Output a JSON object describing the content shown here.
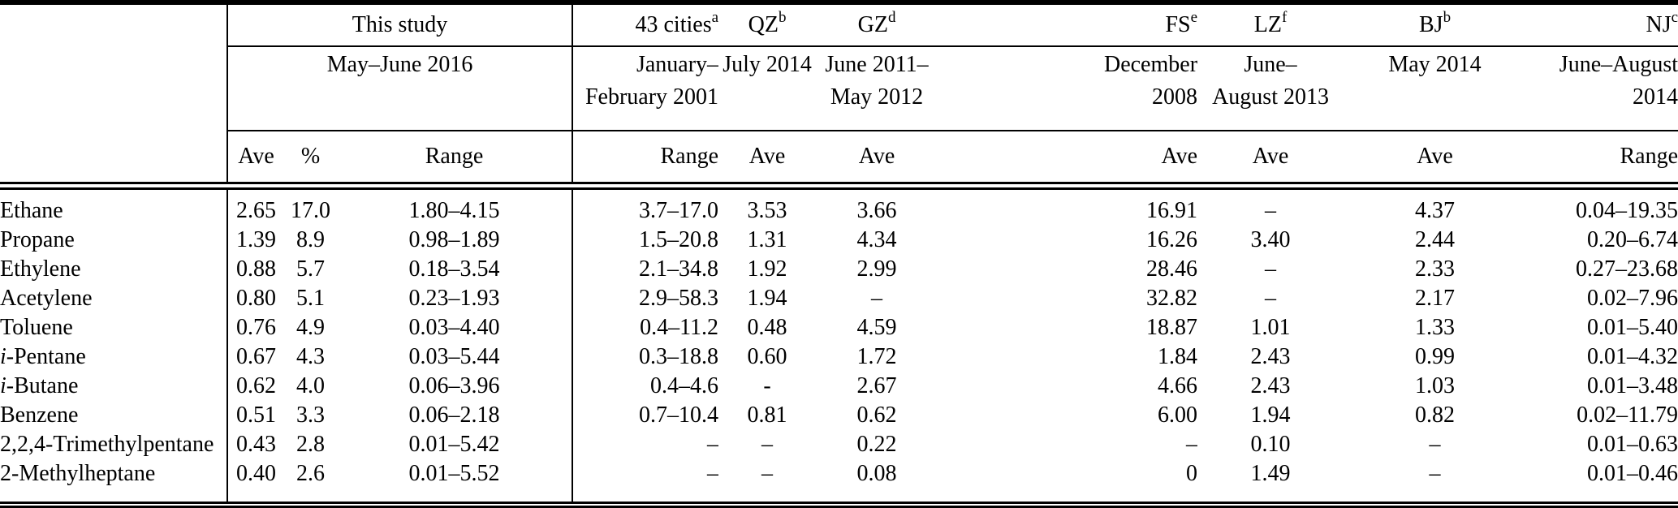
{
  "table": {
    "study": {
      "label": "This study",
      "date": "May–June 2016",
      "stats": [
        "Ave",
        "%",
        "Range"
      ]
    },
    "sites": [
      {
        "label": "43 cities",
        "sup": "a",
        "date": "January–\nFebruary 2001",
        "stat": "Range"
      },
      {
        "label": "QZ",
        "sup": "b",
        "date": "July 2014",
        "stat": "Ave"
      },
      {
        "label": "GZ",
        "sup": "d",
        "date": "June 2011–\nMay 2012",
        "stat": "Ave"
      },
      {
        "label": "FS",
        "sup": "e",
        "date": "December\n2008",
        "stat": "Ave"
      },
      {
        "label": "LZ",
        "sup": "f",
        "date": "June–\nAugust 2013",
        "stat": "Ave"
      },
      {
        "label": "BJ",
        "sup": "b",
        "date": "May 2014",
        "stat": "Ave"
      },
      {
        "label": "NJ",
        "sup": "c",
        "date": "June–August\n2014",
        "stat": "Range"
      }
    ],
    "rows": [
      {
        "name": "Ethane",
        "italic_first": false,
        "values": [
          "2.65",
          "17.0",
          "1.80–4.15",
          "3.7–17.0",
          "3.53",
          "3.66",
          "16.91",
          "–",
          "4.37",
          "0.04–19.35"
        ]
      },
      {
        "name": "Propane",
        "italic_first": false,
        "values": [
          "1.39",
          "8.9",
          "0.98–1.89",
          "1.5–20.8",
          "1.31",
          "4.34",
          "16.26",
          "3.40",
          "2.44",
          "0.20–6.74"
        ]
      },
      {
        "name": "Ethylene",
        "italic_first": false,
        "values": [
          "0.88",
          "5.7",
          "0.18–3.54",
          "2.1–34.8",
          "1.92",
          "2.99",
          "28.46",
          "–",
          "2.33",
          "0.27–23.68"
        ]
      },
      {
        "name": "Acetylene",
        "italic_first": false,
        "values": [
          "0.80",
          "5.1",
          "0.23–1.93",
          "2.9–58.3",
          "1.94",
          "–",
          "32.82",
          "–",
          "2.17",
          "0.02–7.96"
        ]
      },
      {
        "name": "Toluene",
        "italic_first": false,
        "values": [
          "0.76",
          "4.9",
          "0.03–4.40",
          "0.4–11.2",
          "0.48",
          "4.59",
          "18.87",
          "1.01",
          "1.33",
          "0.01–5.40"
        ]
      },
      {
        "name": "i-Pentane",
        "italic_first": true,
        "values": [
          "0.67",
          "4.3",
          "0.03–5.44",
          "0.3–18.8",
          "0.60",
          "1.72",
          "1.84",
          "2.43",
          "0.99",
          "0.01–4.32"
        ]
      },
      {
        "name": "i-Butane",
        "italic_first": true,
        "values": [
          "0.62",
          "4.0",
          "0.06–3.96",
          "0.4–4.6",
          "-",
          "2.67",
          "4.66",
          "2.43",
          "1.03",
          "0.01–3.48"
        ]
      },
      {
        "name": "Benzene",
        "italic_first": false,
        "values": [
          "0.51",
          "3.3",
          "0.06–2.18",
          "0.7–10.4",
          "0.81",
          "0.62",
          "6.00",
          "1.94",
          "0.82",
          "0.02–11.79"
        ]
      },
      {
        "name": "2,2,4-Trimethylpentane",
        "italic_first": false,
        "values": [
          "0.43",
          "2.8",
          "0.01–5.42",
          "–",
          "–",
          "0.22",
          "–",
          "0.10",
          "–",
          "0.01–0.63"
        ]
      },
      {
        "name": "2-Methylheptane",
        "italic_first": false,
        "values": [
          "0.40",
          "2.6",
          "0.01–5.52",
          "–",
          "–",
          "0.08",
          "0",
          "1.49",
          "–",
          "0.01–0.46"
        ]
      }
    ]
  }
}
